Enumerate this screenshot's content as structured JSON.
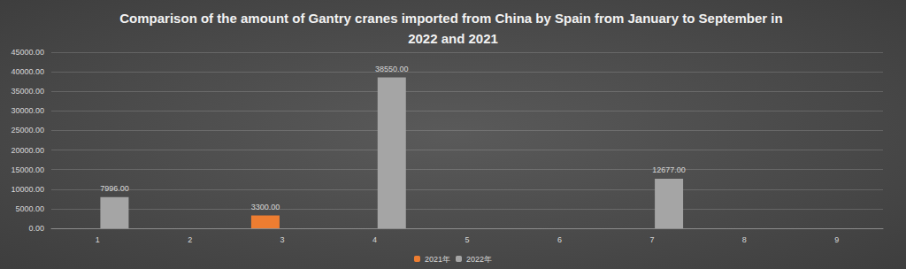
{
  "chart_data": {
    "type": "bar",
    "title": "Comparison of the amount of Gantry cranes imported from China by Spain from January to September in 2022 and 2021",
    "categories": [
      "1",
      "2",
      "3",
      "4",
      "5",
      "6",
      "7",
      "8",
      "9"
    ],
    "series": [
      {
        "name": "2021年",
        "color": "#ED7D31",
        "values": [
          null,
          null,
          3300,
          null,
          null,
          null,
          null,
          null,
          null
        ],
        "value_labels": [
          null,
          null,
          "3300.00",
          null,
          null,
          null,
          null,
          null,
          null
        ]
      },
      {
        "name": "2022年",
        "color": "#A5A5A5",
        "values": [
          7996,
          null,
          null,
          38550,
          null,
          null,
          12677,
          null,
          null
        ],
        "value_labels": [
          "7996.00",
          null,
          null,
          "38550.00",
          null,
          null,
          "12677.00",
          null,
          null
        ]
      }
    ],
    "ylim": [
      0,
      45000
    ],
    "yticks": [
      {
        "value": 0,
        "label": "0.00"
      },
      {
        "value": 5000,
        "label": "5000.00"
      },
      {
        "value": 10000,
        "label": "10000.00"
      },
      {
        "value": 15000,
        "label": "15000.00"
      },
      {
        "value": 20000,
        "label": "20000.00"
      },
      {
        "value": 25000,
        "label": "25000.00"
      },
      {
        "value": 30000,
        "label": "30000.00"
      },
      {
        "value": 35000,
        "label": "35000.00"
      },
      {
        "value": 40000,
        "label": "40000.00"
      },
      {
        "value": 45000,
        "label": "45000.00"
      }
    ],
    "grid": true,
    "legend": "bottom",
    "data_labels": true
  }
}
